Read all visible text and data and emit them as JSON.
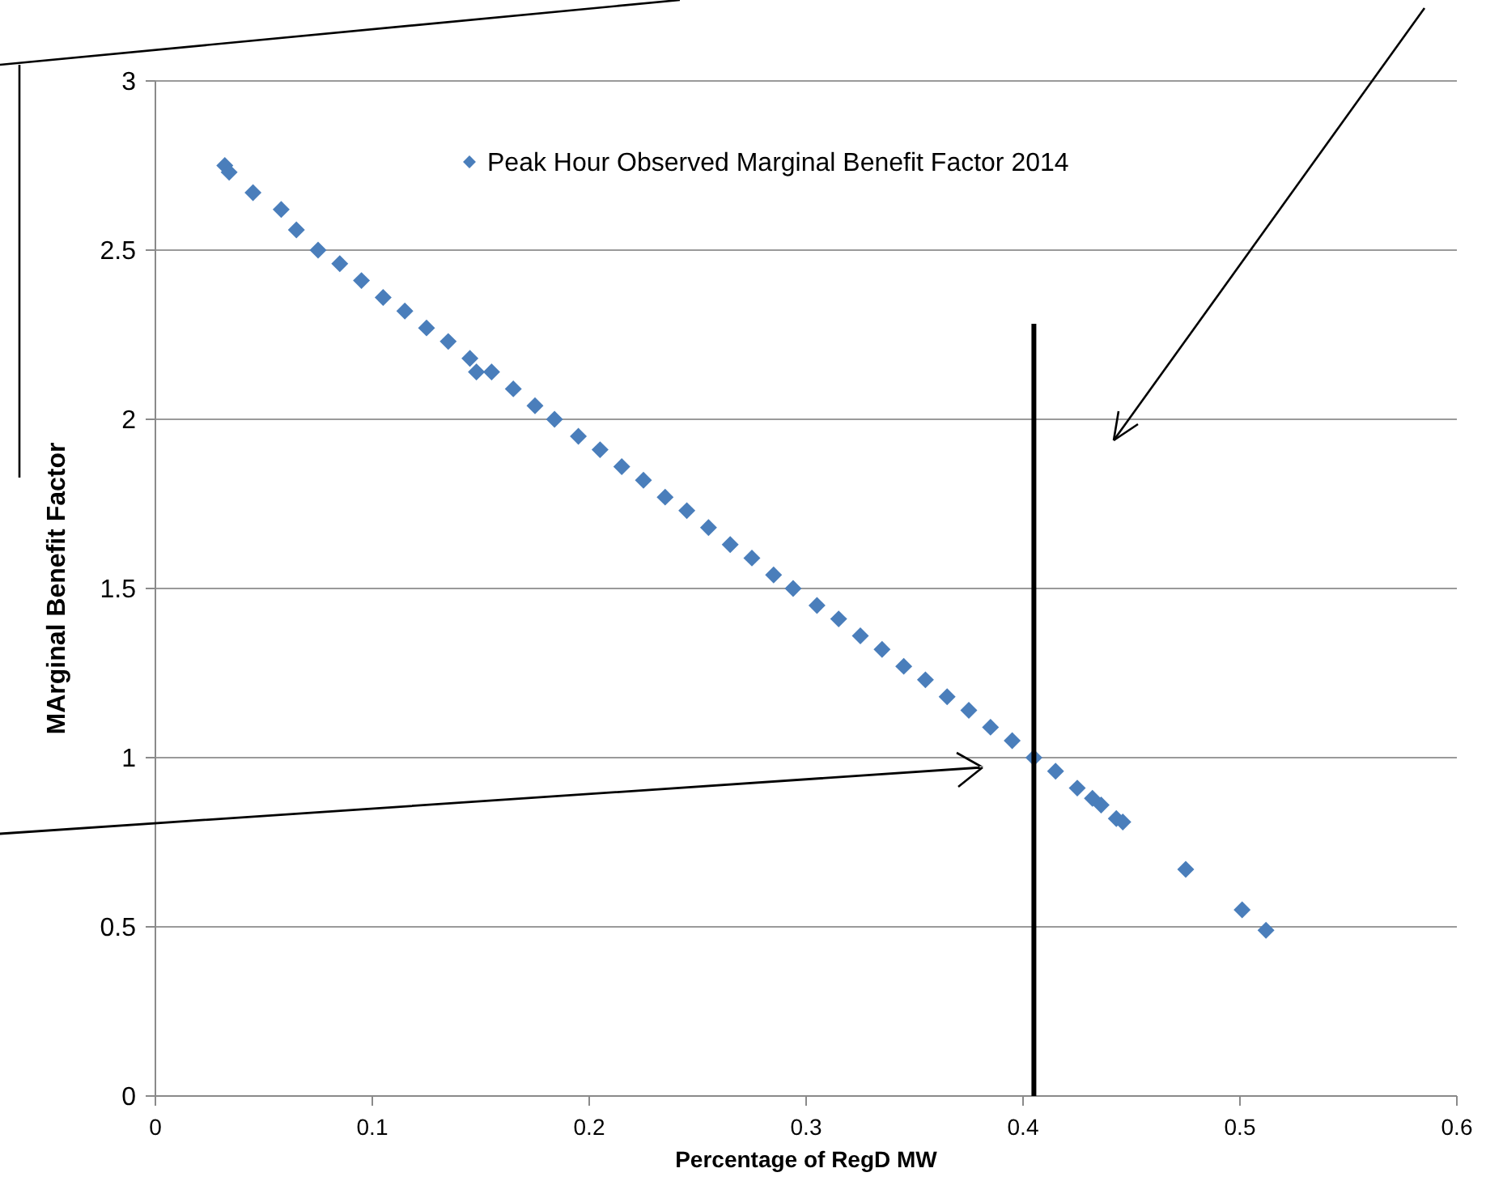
{
  "chart_data": {
    "type": "scatter",
    "xlabel": "Percentage of RegD MW",
    "ylabel": "MArginal Benefit Factor",
    "xlim": [
      0,
      0.6
    ],
    "xticks": [
      0,
      0.1,
      0.2,
      0.3,
      0.4,
      0.5,
      0.6
    ],
    "ylim": [
      0,
      3
    ],
    "yticks": [
      0,
      0.5,
      1,
      1.5,
      2,
      2.5,
      3
    ],
    "grid": "y",
    "legend": "top",
    "marker": "diamond",
    "ref_lines": [
      {
        "axis": "x",
        "value": 0.405,
        "color": "#000000"
      }
    ],
    "series": [
      {
        "name": "Peak Hour Observed Marginal Benefit Factor 2014",
        "color": "#4a7ebb",
        "x": [
          0.032,
          0.034,
          0.045,
          0.058,
          0.065,
          0.075,
          0.085,
          0.095,
          0.105,
          0.115,
          0.125,
          0.135,
          0.145,
          0.148,
          0.155,
          0.165,
          0.175,
          0.184,
          0.195,
          0.205,
          0.215,
          0.225,
          0.235,
          0.245,
          0.255,
          0.265,
          0.275,
          0.285,
          0.294,
          0.305,
          0.315,
          0.325,
          0.335,
          0.345,
          0.355,
          0.365,
          0.375,
          0.385,
          0.395,
          0.405,
          0.415,
          0.425,
          0.432,
          0.436,
          0.443,
          0.446,
          0.475,
          0.501,
          0.512
        ],
        "values": [
          2.75,
          2.73,
          2.67,
          2.62,
          2.56,
          2.5,
          2.46,
          2.41,
          2.36,
          2.32,
          2.27,
          2.23,
          2.18,
          2.14,
          2.14,
          2.09,
          2.04,
          2.0,
          1.95,
          1.91,
          1.86,
          1.82,
          1.77,
          1.73,
          1.68,
          1.63,
          1.59,
          1.54,
          1.5,
          1.45,
          1.41,
          1.36,
          1.32,
          1.27,
          1.23,
          1.18,
          1.14,
          1.09,
          1.05,
          1.0,
          0.96,
          0.91,
          0.88,
          0.86,
          0.82,
          0.81,
          0.67,
          0.55,
          0.49
        ]
      }
    ]
  }
}
